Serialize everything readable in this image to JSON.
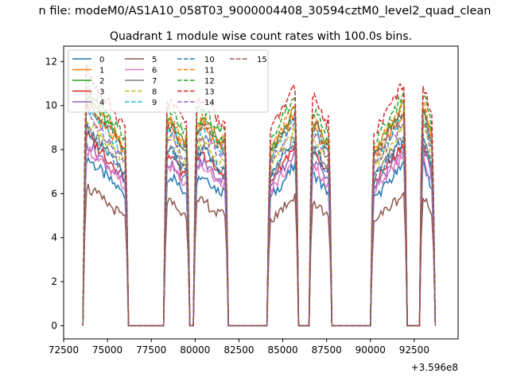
{
  "figure": {
    "suptitle": "n file: modeM0/AS1A10_058T03_9000004408_30594cztM0_level2_quad_clean",
    "offset_label": "+3.596e8"
  },
  "chart_data": {
    "type": "line",
    "title": "Quadrant 1 module wise count rates with 100.0s bins.",
    "xlabel": "",
    "ylabel": "",
    "x_offset": 359600000,
    "xlim": [
      72500,
      95000
    ],
    "ylim": [
      -0.6,
      12.7
    ],
    "x_ticks": [
      72500,
      75000,
      77500,
      80000,
      82500,
      85000,
      87500,
      90000,
      92500
    ],
    "x_tick_labels": [
      "72500",
      "75000",
      "77500",
      "80000",
      "82500",
      "85000",
      "87500",
      "90000",
      "92500"
    ],
    "y_ticks": [
      0,
      2,
      4,
      6,
      8,
      10,
      12
    ],
    "y_tick_labels": [
      "0",
      "2",
      "4",
      "6",
      "8",
      "10",
      "12"
    ],
    "grid": false,
    "legend_position": "top-left",
    "legend_columns": 4,
    "active_intervals": [
      [
        73600,
        76200,
        "decay"
      ],
      [
        78200,
        79700,
        "flat"
      ],
      [
        79900,
        81900,
        "flat"
      ],
      [
        84100,
        85900,
        "rise"
      ],
      [
        86500,
        87800,
        "flat"
      ],
      [
        90000,
        92100,
        "rise"
      ],
      [
        92800,
        93700,
        "decay"
      ]
    ],
    "series": [
      {
        "name": "0",
        "color": "#1f77b4",
        "dashed": false,
        "level": 6.8
      },
      {
        "name": "1",
        "color": "#ff7f0e",
        "dashed": false,
        "level": 9.0
      },
      {
        "name": "2",
        "color": "#2ca02c",
        "dashed": false,
        "level": 9.3
      },
      {
        "name": "3",
        "color": "#d62728",
        "dashed": false,
        "level": 7.7
      },
      {
        "name": "4",
        "color": "#9467bd",
        "dashed": false,
        "level": 7.4
      },
      {
        "name": "5",
        "color": "#8c564b",
        "dashed": false,
        "level": 5.6
      },
      {
        "name": "6",
        "color": "#e377c2",
        "dashed": false,
        "level": 7.2
      },
      {
        "name": "7",
        "color": "#7f7f7f",
        "dashed": false,
        "level": 8.0
      },
      {
        "name": "8",
        "color": "#bcbd22",
        "dashed": true,
        "level": 8.4
      },
      {
        "name": "9",
        "color": "#17becf",
        "dashed": true,
        "level": 8.9
      },
      {
        "name": "10",
        "color": "#1f77b4",
        "dashed": true,
        "level": 7.9
      },
      {
        "name": "11",
        "color": "#ff7f0e",
        "dashed": true,
        "level": 9.4
      },
      {
        "name": "12",
        "color": "#2ca02c",
        "dashed": true,
        "level": 9.8
      },
      {
        "name": "13",
        "color": "#d62728",
        "dashed": true,
        "level": 10.3
      },
      {
        "name": "14",
        "color": "#9467bd",
        "dashed": true,
        "level": 8.6
      },
      {
        "name": "15",
        "color": "#8c564b",
        "dashed": true,
        "level": 9.1
      }
    ]
  }
}
